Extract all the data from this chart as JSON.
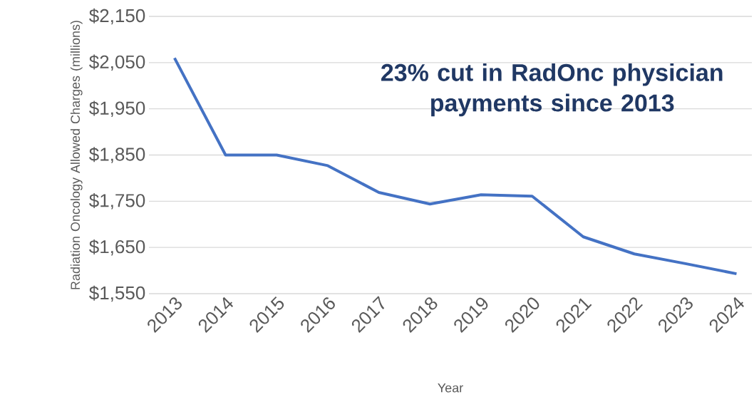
{
  "chart_data": {
    "type": "line",
    "ylabel": "Radiation Oncology Allowed Charges (millions)",
    "xlabel": "Year",
    "annotations": [
      "23% cut in RadOnc physician payments since 2013"
    ],
    "categories": [
      "2013",
      "2014",
      "2015",
      "2016",
      "2017",
      "2018",
      "2019",
      "2020",
      "2021",
      "2022",
      "2023",
      "2024"
    ],
    "values": [
      2060,
      1850,
      1850,
      1827,
      1769,
      1744,
      1764,
      1761,
      1673,
      1636,
      1615,
      1593
    ],
    "color": "#4472c4",
    "ylim": [
      1550,
      2150
    ],
    "yticks": [
      {
        "value": 1550,
        "label": "$1,550"
      },
      {
        "value": 1650,
        "label": "$1,650"
      },
      {
        "value": 1750,
        "label": "$1,750"
      },
      {
        "value": 1850,
        "label": "$1,850"
      },
      {
        "value": 1950,
        "label": "$1,950"
      },
      {
        "value": 2050,
        "label": "$2,050"
      },
      {
        "value": 2150,
        "label": "$2,150"
      }
    ],
    "grid": "y",
    "marker": "none",
    "line_style": "solid"
  }
}
